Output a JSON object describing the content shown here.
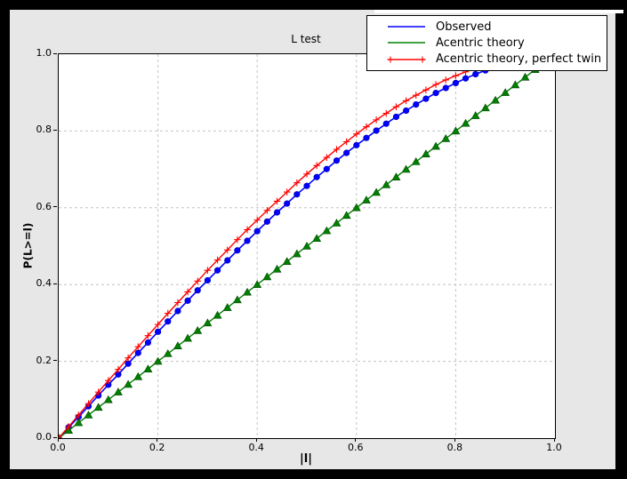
{
  "window": {
    "outer_background": "#000000",
    "figure_background": "#e7e7e7",
    "plot_background": "#ffffff"
  },
  "chart_data": {
    "type": "line",
    "title": "L test",
    "xlabel": "|l|",
    "ylabel": "P(L>=l)",
    "xlim": [
      0.0,
      1.0
    ],
    "ylim": [
      0.0,
      1.0
    ],
    "xticks": [
      0.0,
      0.2,
      0.4,
      0.6,
      0.8,
      1.0
    ],
    "yticks": [
      0.0,
      0.2,
      0.4,
      0.6,
      0.8,
      1.0
    ],
    "grid": true,
    "grid_color": "#c4c4c4",
    "legend_position": "upper right, overlapping top-right of axes",
    "x": [
      0.0,
      0.02,
      0.04,
      0.06,
      0.08,
      0.1,
      0.12,
      0.14,
      0.16,
      0.18,
      0.2,
      0.22,
      0.24,
      0.26,
      0.28,
      0.3,
      0.32,
      0.34,
      0.36,
      0.38,
      0.4,
      0.42,
      0.44,
      0.46,
      0.48,
      0.5,
      0.52,
      0.54,
      0.56,
      0.58,
      0.6,
      0.62,
      0.64,
      0.66,
      0.68,
      0.7,
      0.72,
      0.74,
      0.76,
      0.78,
      0.8,
      0.82,
      0.84,
      0.86,
      0.88,
      0.9,
      0.92,
      0.94,
      0.96,
      0.98,
      1.0
    ],
    "series": [
      {
        "name": "Observed",
        "color": "#0000ff",
        "marker": "circle",
        "legend_markers": false,
        "values": [
          0.0,
          0.028,
          0.055,
          0.083,
          0.111,
          0.139,
          0.166,
          0.194,
          0.222,
          0.249,
          0.277,
          0.304,
          0.331,
          0.358,
          0.385,
          0.411,
          0.437,
          0.463,
          0.489,
          0.514,
          0.539,
          0.564,
          0.588,
          0.611,
          0.635,
          0.657,
          0.68,
          0.701,
          0.723,
          0.743,
          0.763,
          0.782,
          0.801,
          0.819,
          0.837,
          0.853,
          0.869,
          0.884,
          0.899,
          0.912,
          0.925,
          0.937,
          0.948,
          0.958,
          0.967,
          0.975,
          0.982,
          0.988,
          0.993,
          0.997,
          1.0
        ]
      },
      {
        "name": "Acentric theory",
        "color": "#008000",
        "marker": "triangle",
        "legend_markers": false,
        "values": [
          0.0,
          0.02,
          0.04,
          0.06,
          0.08,
          0.1,
          0.12,
          0.14,
          0.16,
          0.18,
          0.2,
          0.22,
          0.24,
          0.26,
          0.28,
          0.3,
          0.32,
          0.34,
          0.36,
          0.38,
          0.4,
          0.42,
          0.44,
          0.46,
          0.48,
          0.5,
          0.52,
          0.54,
          0.56,
          0.58,
          0.6,
          0.62,
          0.64,
          0.66,
          0.68,
          0.7,
          0.72,
          0.74,
          0.76,
          0.78,
          0.8,
          0.82,
          0.84,
          0.86,
          0.88,
          0.9,
          0.92,
          0.94,
          0.96,
          0.98,
          1.0
        ]
      },
      {
        "name": "Acentric theory, perfect twin",
        "color": "#ff0000",
        "marker": "plus",
        "legend_markers": true,
        "values": [
          0.0,
          0.03,
          0.06,
          0.09,
          0.12,
          0.15,
          0.179,
          0.209,
          0.238,
          0.267,
          0.296,
          0.325,
          0.353,
          0.381,
          0.409,
          0.437,
          0.464,
          0.49,
          0.517,
          0.543,
          0.568,
          0.593,
          0.617,
          0.641,
          0.665,
          0.688,
          0.71,
          0.731,
          0.752,
          0.772,
          0.792,
          0.811,
          0.829,
          0.846,
          0.863,
          0.879,
          0.893,
          0.907,
          0.921,
          0.933,
          0.944,
          0.954,
          0.964,
          0.972,
          0.979,
          0.986,
          0.991,
          0.995,
          0.998,
          0.999,
          1.0
        ]
      }
    ]
  }
}
